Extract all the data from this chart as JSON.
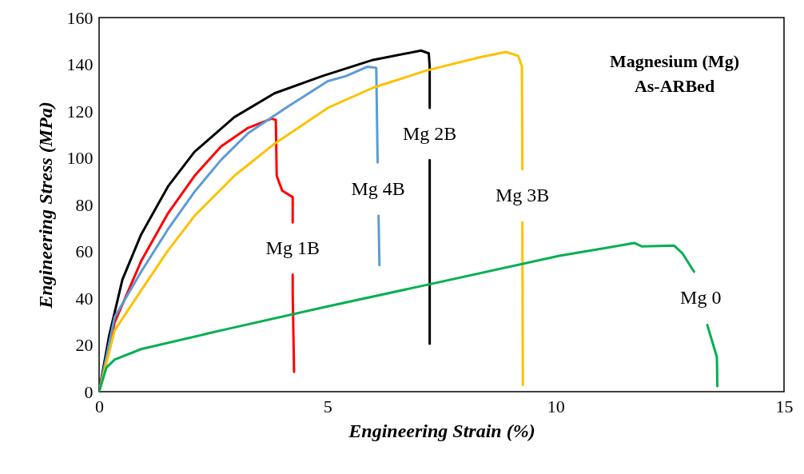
{
  "chart_data": {
    "type": "line",
    "xlabel": "Engineering Strain (%)",
    "ylabel": "Engineering Stress (MPa)",
    "xlim": [
      0,
      15
    ],
    "xticks": [
      0,
      5,
      10,
      15
    ],
    "ylim": [
      0,
      160
    ],
    "yticks": [
      0,
      20,
      40,
      60,
      80,
      100,
      120,
      140,
      160
    ],
    "marker": "none",
    "annotations": [
      "Magnesium (Mg)",
      "As-ARBed"
    ],
    "series": [
      {
        "name": "Mg 1B",
        "color": "#ff0000",
        "x": [
          0,
          0.34,
          0.92,
          1.51,
          2.09,
          2.67,
          3.26,
          3.78,
          3.87,
          3.89,
          4.01,
          4.24,
          4.24,
          null,
          4.24,
          4.24,
          4.27
        ],
        "values": [
          0,
          29.6,
          55.8,
          76.3,
          92.3,
          104.9,
          112.8,
          116.8,
          116.2,
          92.3,
          86,
          83.2,
          72.4,
          null,
          50.1,
          42.2,
          8.5
        ]
      },
      {
        "name": "Mg 2B",
        "color": "#000000",
        "x": [
          0,
          0.22,
          0.51,
          0.92,
          1.51,
          2.09,
          2.96,
          3.84,
          4.89,
          6,
          7.05,
          7.22,
          7.24,
          7.24,
          null,
          7.24,
          7.24
        ],
        "values": [
          0,
          23.9,
          47.9,
          67.2,
          87.8,
          102.6,
          117.4,
          127.6,
          135,
          141.9,
          145.9,
          144.7,
          139,
          121.4,
          null,
          99.1,
          20.5
        ]
      },
      {
        "name": "Mg 4B",
        "color": "#5b9bd5",
        "x": [
          0,
          0.34,
          0.92,
          1.51,
          2.09,
          2.67,
          3.26,
          4.13,
          5.01,
          5.41,
          5.88,
          6.07,
          6.1,
          null,
          6.12,
          6.14
        ],
        "values": [
          0,
          31.9,
          51.3,
          69.5,
          85.5,
          99.1,
          110.5,
          121.9,
          132.8,
          135,
          139,
          138.5,
          98,
          null,
          75.2,
          54.1
        ]
      },
      {
        "name": "Mg 3B",
        "color": "#ffc000",
        "x": [
          0,
          0.34,
          0.92,
          1.51,
          2.09,
          2.96,
          3.84,
          5.01,
          6,
          7.16,
          8.33,
          8.91,
          9.18,
          9.26,
          9.27,
          null,
          9.27,
          9.28
        ],
        "values": [
          0,
          26.2,
          43.3,
          60.4,
          75.2,
          92.3,
          106,
          121.4,
          130,
          137.3,
          143,
          145.3,
          143.6,
          139,
          95.1,
          null,
          72.4,
          2.8
        ]
      },
      {
        "name": "Mg 0",
        "color": "#00b050",
        "x": [
          0,
          0.16,
          0.34,
          0.92,
          2.67,
          5.01,
          7.16,
          10.08,
          10.96,
          11.72,
          11.89,
          12.59,
          12.77,
          13.03,
          null,
          13.32,
          13.53,
          13.54
        ],
        "values": [
          0,
          10.3,
          13.7,
          18.2,
          26.2,
          36.5,
          45.6,
          58.1,
          61,
          63.6,
          62.1,
          62.5,
          59.3,
          51.3,
          null,
          28.5,
          14.8,
          2.3
        ]
      }
    ]
  }
}
